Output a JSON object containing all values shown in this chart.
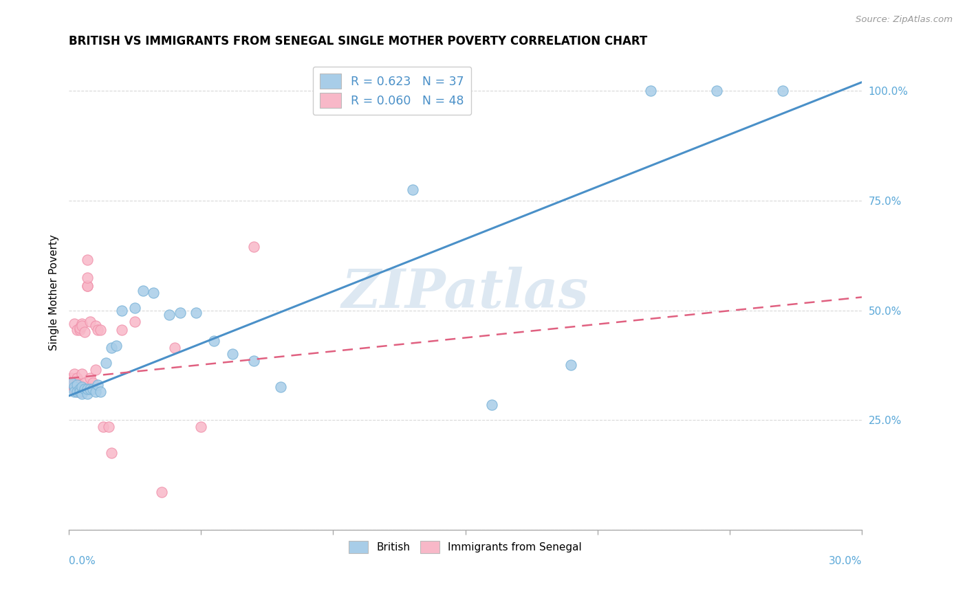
{
  "title": "BRITISH VS IMMIGRANTS FROM SENEGAL SINGLE MOTHER POVERTY CORRELATION CHART",
  "source": "Source: ZipAtlas.com",
  "ylabel": "Single Mother Poverty",
  "watermark": "ZIPatlas",
  "blue_R": 0.623,
  "blue_N": 37,
  "pink_R": 0.06,
  "pink_N": 48,
  "blue_color": "#a8cde8",
  "pink_color": "#f8b8c8",
  "blue_scatter_edge": "#7ab3d8",
  "pink_scatter_edge": "#f090aa",
  "blue_line_color": "#4a90c8",
  "pink_line_color": "#e06080",
  "xlim": [
    0.0,
    0.3
  ],
  "ylim": [
    0.0,
    1.08
  ],
  "yticks": [
    0.0,
    0.25,
    0.5,
    0.75,
    1.0
  ],
  "ytick_labels": [
    "",
    "25.0%",
    "50.0%",
    "75.0%",
    "100.0%"
  ],
  "british_x": [
    0.001,
    0.002,
    0.002,
    0.003,
    0.003,
    0.004,
    0.004,
    0.005,
    0.005,
    0.006,
    0.007,
    0.007,
    0.008,
    0.009,
    0.01,
    0.011,
    0.012,
    0.014,
    0.016,
    0.018,
    0.02,
    0.025,
    0.028,
    0.032,
    0.038,
    0.042,
    0.048,
    0.055,
    0.062,
    0.07,
    0.08,
    0.13,
    0.16,
    0.19,
    0.22,
    0.245,
    0.27
  ],
  "british_y": [
    0.335,
    0.325,
    0.315,
    0.33,
    0.315,
    0.32,
    0.315,
    0.325,
    0.31,
    0.32,
    0.31,
    0.32,
    0.32,
    0.32,
    0.315,
    0.33,
    0.315,
    0.38,
    0.415,
    0.42,
    0.5,
    0.505,
    0.545,
    0.54,
    0.49,
    0.495,
    0.495,
    0.43,
    0.4,
    0.385,
    0.325,
    0.775,
    0.285,
    0.375,
    1.0,
    1.0,
    1.0
  ],
  "senegal_x": [
    0.0005,
    0.001,
    0.001,
    0.0015,
    0.002,
    0.002,
    0.002,
    0.002,
    0.003,
    0.003,
    0.003,
    0.003,
    0.003,
    0.003,
    0.004,
    0.004,
    0.004,
    0.004,
    0.004,
    0.005,
    0.005,
    0.005,
    0.005,
    0.005,
    0.005,
    0.006,
    0.006,
    0.006,
    0.007,
    0.007,
    0.007,
    0.007,
    0.008,
    0.008,
    0.009,
    0.01,
    0.01,
    0.011,
    0.012,
    0.013,
    0.015,
    0.016,
    0.02,
    0.025,
    0.035,
    0.05,
    0.07,
    0.04
  ],
  "senegal_y": [
    0.335,
    0.345,
    0.33,
    0.33,
    0.335,
    0.32,
    0.355,
    0.47,
    0.335,
    0.33,
    0.315,
    0.345,
    0.455,
    0.33,
    0.325,
    0.33,
    0.315,
    0.455,
    0.46,
    0.325,
    0.315,
    0.355,
    0.47,
    0.465,
    0.32,
    0.335,
    0.32,
    0.45,
    0.555,
    0.615,
    0.555,
    0.575,
    0.345,
    0.475,
    0.335,
    0.465,
    0.365,
    0.455,
    0.455,
    0.235,
    0.235,
    0.175,
    0.455,
    0.475,
    0.085,
    0.235,
    0.645,
    0.415
  ],
  "blue_line_x0": 0.0,
  "blue_line_y0": 0.305,
  "blue_line_x1": 0.3,
  "blue_line_y1": 1.02,
  "pink_line_x0": 0.0,
  "pink_line_y0": 0.345,
  "pink_line_x1": 0.3,
  "pink_line_y1": 0.53
}
